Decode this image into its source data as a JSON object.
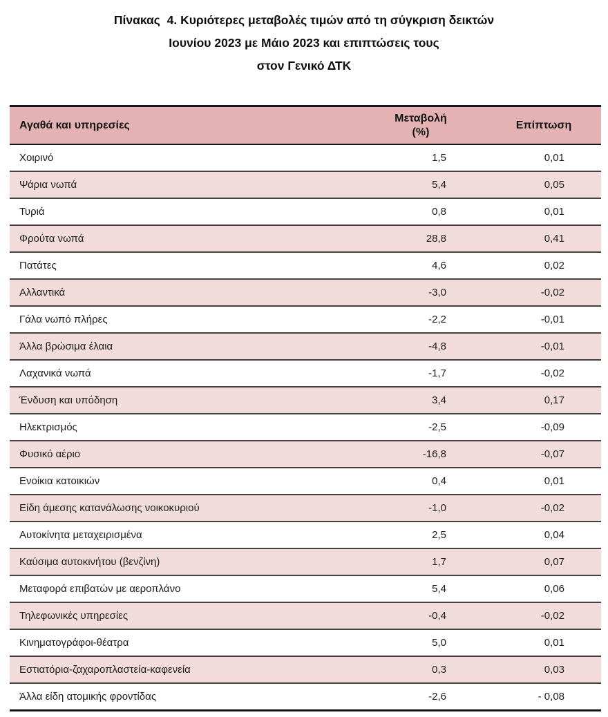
{
  "title": {
    "line1": "Πίνακας  4. Κυριότερες μεταβολές τιμών από τη σύγκριση δεικτών",
    "line2": "Ιουνίου 2023 με Μάιο 2023 και επιπτώσεις τους",
    "line3": "στον Γενικό ΔΤΚ"
  },
  "table": {
    "header": {
      "goods": "Αγαθά και υπηρεσίες",
      "change_line1": "Μεταβολή",
      "change_line2": "(%)",
      "impact": "Επίπτωση"
    },
    "colors": {
      "header_bg": "#e4b2b2",
      "alt_row_bg": "#f2dcdb",
      "separator_line": "#46403e",
      "outer_border": "#161616",
      "text": "#1b1b1b"
    },
    "rows": [
      {
        "label": "Χοιρινό",
        "change": "1,5",
        "impact": "0,01"
      },
      {
        "label": "Ψάρια νωπά",
        "change": "5,4",
        "impact": "0,05"
      },
      {
        "label": "Τυριά",
        "change": "0,8",
        "impact": "0,01"
      },
      {
        "label": "Φρούτα νωπά",
        "change": "28,8",
        "impact": "0,41"
      },
      {
        "label": "Πατάτες",
        "change": "4,6",
        "impact": "0,02"
      },
      {
        "label": "Αλλαντικά",
        "change": "-3,0",
        "impact": "-0,02"
      },
      {
        "label": "Γάλα νωπό πλήρες",
        "change": "-2,2",
        "impact": "-0,01"
      },
      {
        "label": "Άλλα βρώσιμα έλαια",
        "change": "-4,8",
        "impact": "-0,01"
      },
      {
        "label": "Λαχανικά νωπά",
        "change": "-1,7",
        "impact": "-0,02"
      },
      {
        "label": "Ένδυση και υπόδηση",
        "change": "3,4",
        "impact": "0,17"
      },
      {
        "label": "Ηλεκτρισμός",
        "change": "-2,5",
        "impact": "-0,09"
      },
      {
        "label": "Φυσικό αέριο",
        "change": "-16,8",
        "impact": "-0,07"
      },
      {
        "label": "Ενοίκια κατοικιών",
        "change": "0,4",
        "impact": "0,01"
      },
      {
        "label": "Είδη άμεσης κατανάλωσης νοικοκυριού",
        "change": "-1,0",
        "impact": "-0,02"
      },
      {
        "label": "Αυτοκίνητα μεταχειρισμένα",
        "change": "2,5",
        "impact": "0,04"
      },
      {
        "label": "Καύσιμα αυτοκινήτου (βενζίνη)",
        "change": "1,7",
        "impact": "0,07"
      },
      {
        "label": "Μεταφορά επιβατών με αεροπλάνο",
        "change": "5,4",
        "impact": "0,06"
      },
      {
        "label": "Τηλεφωνικές υπηρεσίες",
        "change": "-0,4",
        "impact": "-0,02"
      },
      {
        "label": "Κινηματογράφοι-θέατρα",
        "change": "5,0",
        "impact": "0,01"
      },
      {
        "label": "Εστιατόρια-ζαχαροπλαστεία-καφενεία",
        "change": "0,3",
        "impact": "0,03"
      },
      {
        "label": "Άλλα είδη ατομικής φροντίδας",
        "change": "-2,6",
        "impact": "- 0,08"
      }
    ]
  }
}
